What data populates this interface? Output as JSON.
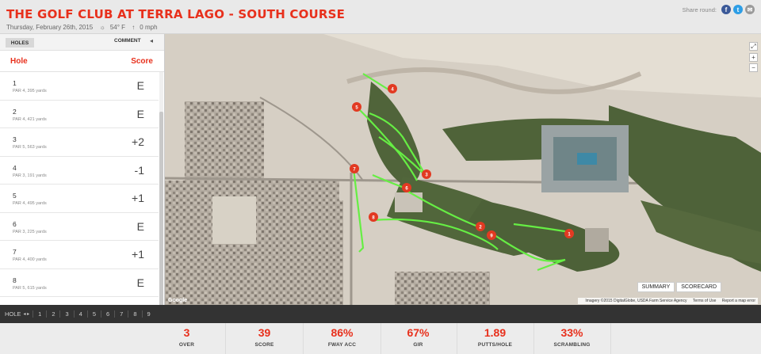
{
  "header": {
    "title": "THE GOLF CLUB AT TERRA LAGO - SOUTH COURSE",
    "date": "Thursday, February 26th, 2015",
    "weather_icon": "sun-icon",
    "temperature": "54° F",
    "wind_icon": "wind-arrow-icon",
    "wind": "0 mph",
    "share_label": "Share round:",
    "share_icons": [
      "facebook-icon",
      "twitter-icon",
      "email-icon"
    ],
    "share_glyphs": {
      "facebook": "f",
      "twitter": "t",
      "email": "✉"
    }
  },
  "panel": {
    "tab_holes": "HOLES",
    "tab_comment": "COMMENT",
    "tab_arrow": "◂",
    "col_hole": "Hole",
    "col_score": "Score",
    "holes": [
      {
        "num": "1",
        "par": "PAR 4, 395 yards",
        "score": "E"
      },
      {
        "num": "2",
        "par": "PAR 4, 421 yards",
        "score": "E"
      },
      {
        "num": "3",
        "par": "PAR 5, 563 yards",
        "score": "+2"
      },
      {
        "num": "4",
        "par": "PAR 3, 191 yards",
        "score": "-1"
      },
      {
        "num": "5",
        "par": "PAR 4, 495 yards",
        "score": "+1"
      },
      {
        "num": "6",
        "par": "PAR 3, 225 yards",
        "score": "E"
      },
      {
        "num": "7",
        "par": "PAR 4, 400 yards",
        "score": "+1"
      },
      {
        "num": "8",
        "par": "PAR 5, 615 yards",
        "score": "E"
      }
    ]
  },
  "map": {
    "fullscreen_glyph": "⤢",
    "zoom_in": "+",
    "zoom_out": "−",
    "btn_summary": "SUMMARY",
    "btn_scorecard": "SCORECARD",
    "attribution": "Imagery ©2015 DigitalGlobe, USDA Farm Service Agency",
    "terms": "Terms of Use",
    "report": "Report a map error",
    "logo": "Google",
    "markers": [
      "1",
      "2",
      "3",
      "4",
      "5",
      "6",
      "7",
      "8",
      "9"
    ]
  },
  "holebar": {
    "label": "HOLE",
    "arrows": "◂ ▸",
    "items": [
      "1",
      "2",
      "3",
      "4",
      "5",
      "6",
      "7",
      "8",
      "9"
    ]
  },
  "stats": [
    {
      "value": "3",
      "label": "OVER"
    },
    {
      "value": "39",
      "label": "SCORE"
    },
    {
      "value": "86%",
      "label": "FWAY ACC"
    },
    {
      "value": "67%",
      "label": "GIR"
    },
    {
      "value": "1.89",
      "label": "PUTTS/HOLE"
    },
    {
      "value": "33%",
      "label": "SCRAMBLING"
    }
  ],
  "colors": {
    "accent": "#e8301c",
    "track": "#66ee44",
    "marker": "#e23a22"
  }
}
